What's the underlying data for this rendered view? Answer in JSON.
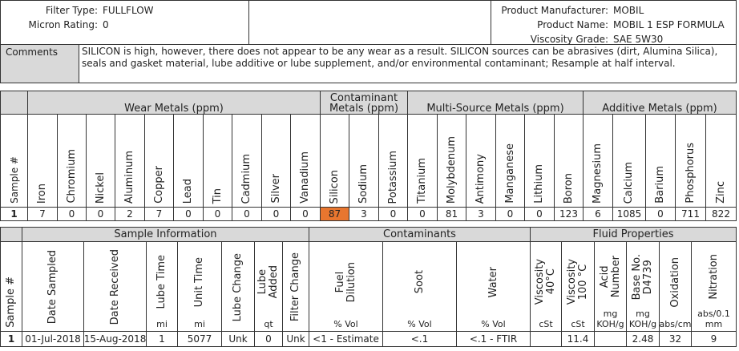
{
  "header": {
    "left": [
      {
        "label": "Filter Type:",
        "value": "FULLFLOW"
      },
      {
        "label": "Micron Rating:",
        "value": 0
      }
    ],
    "right": [
      {
        "label": "Product Manufacturer:",
        "value": "MOBIL"
      },
      {
        "label": "Product Name:",
        "value": "MOBIL 1 ESP FORMULA"
      },
      {
        "label": "Viscosity Grade:",
        "value": "SAE 5W30"
      }
    ]
  },
  "comments": {
    "label": "Comments",
    "text": "SILICON is high, however, there does not appear to be any wear as a result. SILICON sources can be abrasives (dirt, Alumina Silica), seals and gasket material, lube additive or lube supplement, and/or environmental contaminant; Resample at half interval."
  },
  "metals": {
    "sample_header": "Sample #",
    "sample": 1,
    "alert_color": "#e8762f",
    "groups": [
      {
        "title": "Wear Metals (ppm)",
        "columns": [
          {
            "name": "Iron",
            "value": 7
          },
          {
            "name": "Chromium",
            "value": 0
          },
          {
            "name": "Nickel",
            "value": 0
          },
          {
            "name": "Aluminum",
            "value": 2
          },
          {
            "name": "Copper",
            "value": 7
          },
          {
            "name": "Lead",
            "value": 0
          },
          {
            "name": "Tin",
            "value": 0
          },
          {
            "name": "Cadmium",
            "value": 0
          },
          {
            "name": "Silver",
            "value": 0
          },
          {
            "name": "Vanadium",
            "value": 0
          }
        ]
      },
      {
        "title": "Contaminant Metals (ppm)",
        "columns": [
          {
            "name": "Silicon",
            "value": 87,
            "alert": true
          },
          {
            "name": "Sodium",
            "value": 3
          },
          {
            "name": "Potassium",
            "value": 0
          }
        ]
      },
      {
        "title": "Multi-Source Metals (ppm)",
        "columns": [
          {
            "name": "Titanium",
            "value": 0
          },
          {
            "name": "Molybdenum",
            "value": 81
          },
          {
            "name": "Antimony",
            "value": 3
          },
          {
            "name": "Manganese",
            "value": 0
          },
          {
            "name": "Lithium",
            "value": 0
          },
          {
            "name": "Boron",
            "value": 123
          }
        ]
      },
      {
        "title": "Additive Metals (ppm)",
        "columns": [
          {
            "name": "Magnesium",
            "value": 6
          },
          {
            "name": "Calcium",
            "value": 1085
          },
          {
            "name": "Barium",
            "value": 0
          },
          {
            "name": "Phosphorus",
            "value": 711
          },
          {
            "name": "Zinc",
            "value": 822
          }
        ]
      }
    ]
  },
  "samples": {
    "sample_header": "Sample #",
    "sample": 1,
    "groups": [
      {
        "title": "Sample Information",
        "columns": [
          {
            "name": "Date Sampled",
            "unit": null,
            "value": "01-Jul-2018"
          },
          {
            "name": "Date  Received",
            "unit": null,
            "value": "15-Aug-2018"
          },
          {
            "name": "Lube Time",
            "unit": "mi",
            "value": 1
          },
          {
            "name": "Unit Time",
            "unit": "mi",
            "value": 5077
          },
          {
            "name": "Lube Change",
            "unit": null,
            "value": "Unk"
          },
          {
            "name": "Lube\nAdded",
            "unit": "qt",
            "value": 0
          },
          {
            "name": "Filter Change",
            "unit": null,
            "value": "Unk"
          }
        ]
      },
      {
        "title": "Contaminants",
        "columns": [
          {
            "name": "Fuel\nDilution",
            "unit": "% Vol",
            "value": "<1 - Estimate"
          },
          {
            "name": "Soot",
            "unit": "% Vol",
            "value": "<.1"
          },
          {
            "name": "Water",
            "unit": "% Vol",
            "value": "<.1 - FTIR"
          }
        ]
      },
      {
        "title": "Fluid Properties",
        "columns": [
          {
            "name": "Viscosity\n40°C",
            "unit": "cSt",
            "value": null
          },
          {
            "name": "Viscosity\n100 °C",
            "unit": "cSt",
            "value": 11.4
          },
          {
            "name": "Acid\nNumber",
            "unit": "mg\nKOH/g",
            "value": null
          },
          {
            "name": "Base No.\nD4739",
            "unit": "mg\nKOH/g",
            "value": 2.48
          },
          {
            "name": "Oxidation",
            "unit": "abs/cm",
            "value": 32
          },
          {
            "name": "Nitration",
            "unit": "abs/0.1\nmm",
            "value": 9
          }
        ]
      }
    ]
  }
}
